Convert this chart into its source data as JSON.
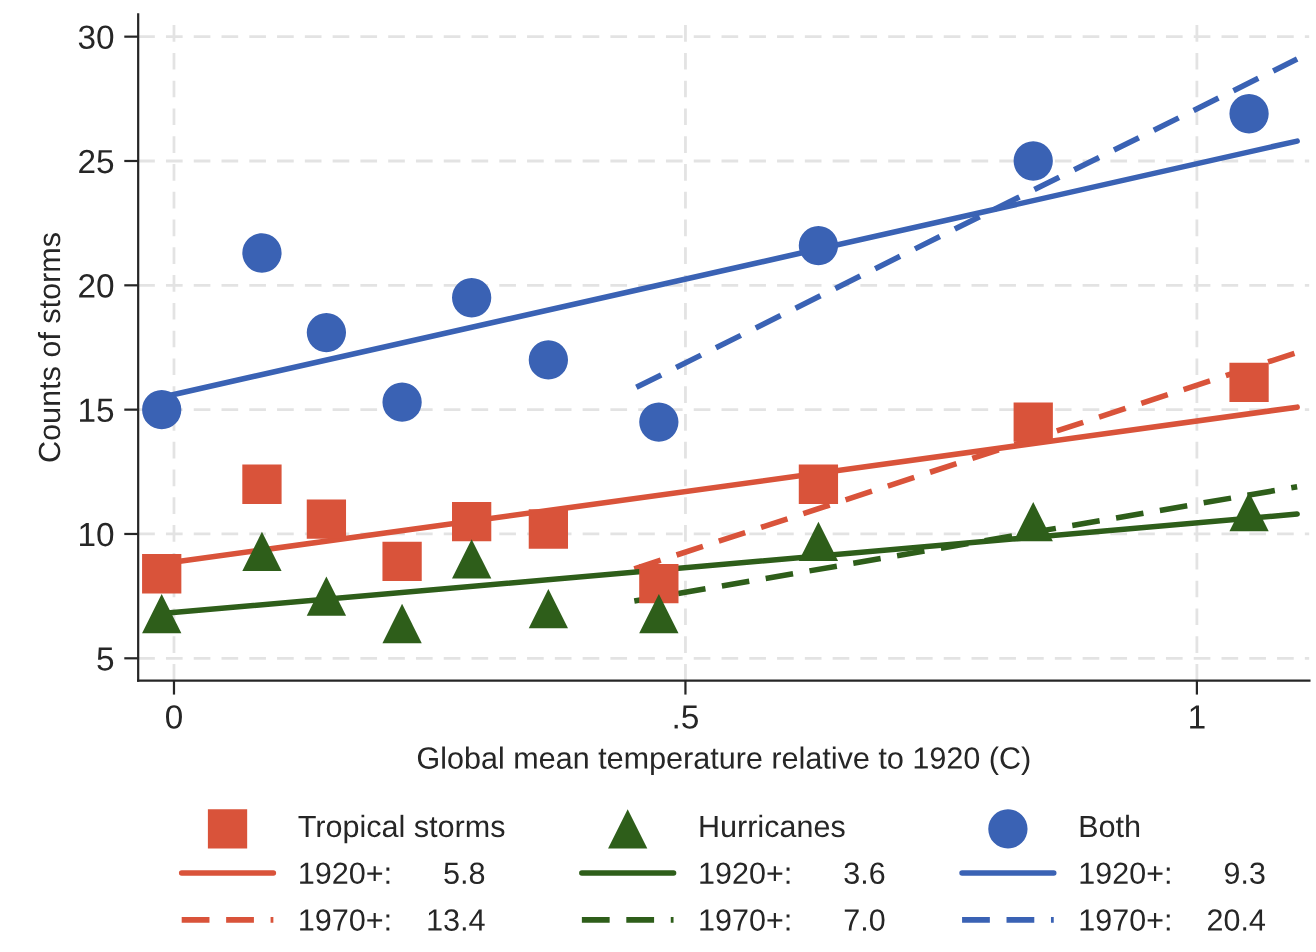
{
  "chart_data": {
    "type": "scatter",
    "xlabel": "Global mean temperature relative to 1920 (C)",
    "ylabel": "Counts of storms",
    "xlim": [
      -0.035,
      1.11
    ],
    "ylim": [
      4.1,
      30.9
    ],
    "xticks": [
      0,
      {
        "value": 0.5,
        "label": ".5"
      },
      1
    ],
    "yticks": [
      5,
      10,
      15,
      20,
      25,
      30
    ],
    "grid": true,
    "legend": "bottom",
    "series": [
      {
        "name": "Tropical storms",
        "marker": "square",
        "color": "#d9533a",
        "x": [
          -0.012,
          0.086,
          0.149,
          0.223,
          0.291,
          0.366,
          0.474,
          0.63,
          0.84,
          1.051
        ],
        "values": [
          8.4,
          12.0,
          10.6,
          8.9,
          10.5,
          10.2,
          8.0,
          12.0,
          14.5,
          16.1
        ]
      },
      {
        "name": "1920+:      5.8",
        "type": "line",
        "line_style": "solid",
        "color": "#d9533a",
        "x": [
          -0.012,
          1.098
        ],
        "values": [
          8.8,
          15.1
        ]
      },
      {
        "name": "1970+:    13.4",
        "type": "line",
        "line_style": "dashed",
        "color": "#d9533a",
        "x": [
          0.45,
          1.098
        ],
        "values": [
          8.6,
          17.3
        ]
      },
      {
        "name": "Hurricanes",
        "marker": "triangle",
        "color": "#2e5e1a",
        "x": [
          -0.012,
          0.086,
          0.149,
          0.223,
          0.291,
          0.366,
          0.474,
          0.63,
          0.84,
          1.051
        ],
        "values": [
          6.8,
          9.3,
          7.5,
          6.4,
          9.0,
          7.0,
          6.8,
          9.7,
          10.5,
          10.9
        ]
      },
      {
        "name": "1920+:      3.6",
        "type": "line",
        "line_style": "solid",
        "color": "#2e5e1a",
        "x": [
          -0.012,
          1.098
        ],
        "values": [
          6.8,
          10.8
        ]
      },
      {
        "name": "1970+:      7.0",
        "type": "line",
        "line_style": "dashed",
        "color": "#2e5e1a",
        "x": [
          0.45,
          1.098
        ],
        "values": [
          7.3,
          11.9
        ]
      },
      {
        "name": "Both",
        "marker": "circle",
        "color": "#3a62b4",
        "x": [
          -0.012,
          0.086,
          0.149,
          0.223,
          0.291,
          0.366,
          0.474,
          0.63,
          0.84,
          1.051
        ],
        "values": [
          15.0,
          21.3,
          18.1,
          15.3,
          19.5,
          17.0,
          14.5,
          21.6,
          25.0,
          26.9
        ]
      },
      {
        "name": "1920+:      9.3",
        "type": "line",
        "line_style": "solid",
        "color": "#3a62b4",
        "x": [
          -0.012,
          1.098
        ],
        "values": [
          15.5,
          25.8
        ]
      },
      {
        "name": "1970+:    20.4",
        "type": "line",
        "line_style": "dashed",
        "color": "#3a62b4",
        "x": [
          0.452,
          1.098
        ],
        "values": [
          15.9,
          29.1
        ]
      }
    ]
  }
}
